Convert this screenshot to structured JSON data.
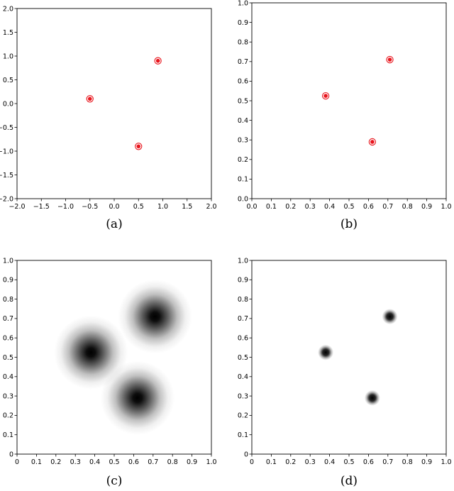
{
  "chart_data": [
    {
      "type": "scatter",
      "caption": "(a)",
      "xlim": [
        -2.0,
        2.0
      ],
      "ylim": [
        -2.0,
        2.0
      ],
      "xticks": [
        "−2.0",
        "−1.5",
        "−1.0",
        "−0.5",
        "0.0",
        "0.5",
        "1.0",
        "1.5",
        "2.0"
      ],
      "yticks": [
        "−2.0",
        "−1.5",
        "−1.0",
        "−0.5",
        "0.0",
        "0.5",
        "1.0",
        "1.5",
        "2.0"
      ],
      "points": [
        {
          "x": -0.5,
          "y": 0.1
        },
        {
          "x": 0.9,
          "y": 0.9
        },
        {
          "x": 0.5,
          "y": -0.9
        }
      ],
      "marker_color": "#e8141c"
    },
    {
      "type": "scatter",
      "caption": "(b)",
      "xlim": [
        0.0,
        1.0
      ],
      "ylim": [
        0.0,
        1.0
      ],
      "xticks": [
        "0.0",
        "0.1",
        "0.2",
        "0.3",
        "0.4",
        "0.5",
        "0.6",
        "0.7",
        "0.8",
        "0.9",
        "1.0"
      ],
      "yticks": [
        "0.0",
        "0.1",
        "0.2",
        "0.3",
        "0.4",
        "0.5",
        "0.6",
        "0.7",
        "0.8",
        "0.9",
        "1.0"
      ],
      "points": [
        {
          "x": 0.38,
          "y": 0.525
        },
        {
          "x": 0.71,
          "y": 0.71
        },
        {
          "x": 0.62,
          "y": 0.29
        }
      ],
      "marker_color": "#e8141c"
    },
    {
      "type": "heatmap",
      "caption": "(c)",
      "xlim": [
        0,
        1
      ],
      "ylim": [
        0,
        1
      ],
      "xticks": [
        "0",
        "0.1",
        "0.2",
        "0.3",
        "0.4",
        "0.5",
        "0.6",
        "0.7",
        "0.8",
        "0.9",
        "1.0"
      ],
      "yticks": [
        "0",
        "0.1",
        "0.2",
        "0.3",
        "0.4",
        "0.5",
        "0.6",
        "0.7",
        "0.8",
        "0.9",
        "1.0"
      ],
      "blobs": [
        {
          "x": 0.38,
          "y": 0.525,
          "spread": 0.19
        },
        {
          "x": 0.71,
          "y": 0.71,
          "spread": 0.19
        },
        {
          "x": 0.62,
          "y": 0.29,
          "spread": 0.19
        }
      ],
      "colormap": "gray_r"
    },
    {
      "type": "heatmap",
      "caption": "(d)",
      "xlim": [
        0,
        1
      ],
      "ylim": [
        0,
        1
      ],
      "xticks": [
        "0",
        "0.1",
        "0.2",
        "0.3",
        "0.4",
        "0.5",
        "0.6",
        "0.7",
        "0.8",
        "0.9",
        "1.0"
      ],
      "yticks": [
        "0",
        "0.1",
        "0.2",
        "0.3",
        "0.4",
        "0.5",
        "0.6",
        "0.7",
        "0.8",
        "0.9",
        "1.0"
      ],
      "blobs": [
        {
          "x": 0.38,
          "y": 0.525,
          "spread": 0.04
        },
        {
          "x": 0.71,
          "y": 0.71,
          "spread": 0.04
        },
        {
          "x": 0.62,
          "y": 0.29,
          "spread": 0.04
        }
      ],
      "colormap": "gray_r"
    }
  ]
}
